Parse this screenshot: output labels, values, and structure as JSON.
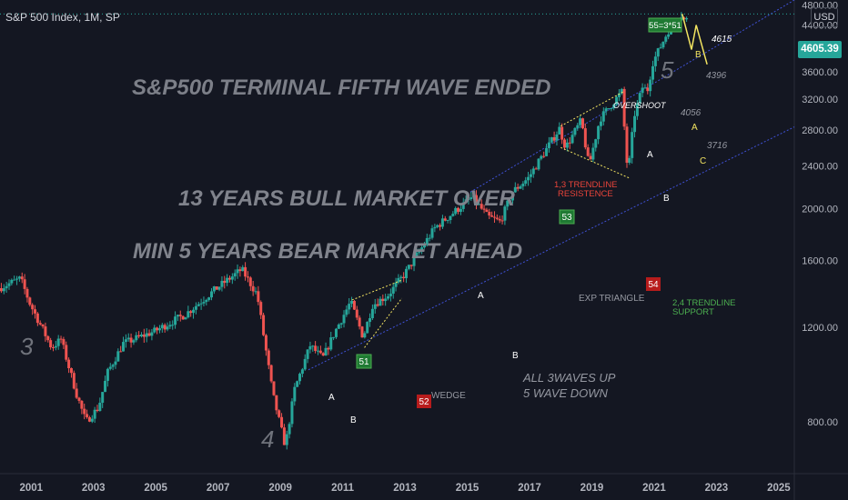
{
  "header": {
    "title": "S&P 500 Index, 1M, SP"
  },
  "currency_button": "USD",
  "last_price_label": "4605.39",
  "colors": {
    "background": "#141722",
    "up_candle": "#26a69a",
    "down_candle": "#ef5350",
    "trendline": "#3f51d6",
    "wave_label": "#70737c",
    "headline": "#7c7f88",
    "note_gray": "#9598a1",
    "red_note": "#e9443a",
    "green_note": "#4caf50",
    "yellow": "#f3e461",
    "green_box": "#1f7a33",
    "red_box": "#b71c1c",
    "axis_text": "#b2b5be"
  },
  "annotations": {
    "headline": "S&P500 TERMINAL FIFTH WAVE ENDED",
    "bull_text": "13 YEARS BULL MARKET OVER",
    "bear_text": "MIN 5 YEARS BEAR MARKET AHEAD",
    "all_waves_line1": "ALL 3WAVES UP",
    "all_waves_line2": "5 WAVE DOWN",
    "wedge": "WEDGE",
    "exp_triangle": "EXP TRIANGLE",
    "overshoot": "OVERSHOOT",
    "trend13_line1": "1,3 TRENDLINE",
    "trend13_line2": "RESISTENCE",
    "trend24_line1": "2,4 TRENDLINE",
    "trend24_line2": "SUPPORT",
    "wave3": "3",
    "wave4": "4",
    "wave5": "5",
    "box_51": "51",
    "box_52": "52",
    "box_53": "53",
    "box_54": "54",
    "box_55": "55=3*51",
    "A_2011": "A",
    "B_2011": "B",
    "A_2015": "A",
    "B_2016": "B",
    "A_2020": "A",
    "B_2020": "B",
    "B_top": "B",
    "A_proj": "A",
    "C_proj": "C",
    "price_4615": "4615",
    "price_4396": "4396",
    "price_4056": "4056",
    "price_3716": "3716"
  },
  "chart_data": {
    "type": "candlestick",
    "title": "S&P 500 Index, 1M, SP",
    "interval": "1M",
    "y_scale": "log",
    "ylim": [
      640,
      4900
    ],
    "xlim": [
      2000.0,
      2025.5
    ],
    "grid": false,
    "x_tick_labels": [
      "2001",
      "2003",
      "2005",
      "2007",
      "2009",
      "2011",
      "2013",
      "2015",
      "2017",
      "2019",
      "2021",
      "2023",
      "2025"
    ],
    "y_tick_labels": [
      "800.00",
      "1200.00",
      "1600.00",
      "2000.00",
      "2400.00",
      "2800.00",
      "3200.00",
      "3600.00",
      "4000.00",
      "4400.00",
      "4800.00"
    ],
    "last_price": 4605.39,
    "price_path": [
      [
        2000.0,
        1420
      ],
      [
        2000.7,
        1480
      ],
      [
        2001.0,
        1330
      ],
      [
        2001.7,
        1100
      ],
      [
        2002.0,
        1140
      ],
      [
        2002.5,
        900
      ],
      [
        2002.8,
        800
      ],
      [
        2003.2,
        850
      ],
      [
        2003.5,
        990
      ],
      [
        2004.0,
        1120
      ],
      [
        2005.0,
        1180
      ],
      [
        2006.0,
        1270
      ],
      [
        2007.0,
        1420
      ],
      [
        2007.8,
        1540
      ],
      [
        2008.3,
        1380
      ],
      [
        2008.8,
        900
      ],
      [
        2009.2,
        720
      ],
      [
        2009.5,
        920
      ],
      [
        2010.0,
        1110
      ],
      [
        2010.4,
        1050
      ],
      [
        2010.8,
        1180
      ],
      [
        2011.3,
        1340
      ],
      [
        2011.7,
        1150
      ],
      [
        2012.0,
        1320
      ],
      [
        2012.5,
        1380
      ],
      [
        2013.0,
        1500
      ],
      [
        2014.0,
        1840
      ],
      [
        2015.2,
        2100
      ],
      [
        2015.7,
        1930
      ],
      [
        2016.1,
        1890
      ],
      [
        2016.5,
        2150
      ],
      [
        2017.0,
        2280
      ],
      [
        2018.0,
        2820
      ],
      [
        2018.2,
        2600
      ],
      [
        2018.7,
        2920
      ],
      [
        2018.95,
        2400
      ],
      [
        2019.3,
        2940
      ],
      [
        2020.0,
        3300
      ],
      [
        2020.2,
        2300
      ],
      [
        2020.4,
        2980
      ],
      [
        2020.7,
        3420
      ],
      [
        2020.8,
        3260
      ],
      [
        2021.0,
        3750
      ],
      [
        2021.5,
        4300
      ],
      [
        2021.9,
        4615
      ],
      [
        2022.0,
        4500
      ]
    ],
    "trendlines": [
      {
        "name": "1,3 TRENDLINE RESISTENCE",
        "points": [
          [
            2015.0,
            2130
          ],
          [
            2025.5,
            4900
          ]
        ]
      },
      {
        "name": "2,4 TRENDLINE SUPPORT",
        "points": [
          [
            2009.9,
            1000
          ],
          [
            2025.5,
            2840
          ]
        ]
      }
    ],
    "horizontal_levels": [
      4615
    ],
    "projection_abc": [
      [
        2021.9,
        4615
      ],
      [
        2022.2,
        3960
      ],
      [
        2022.35,
        4400
      ],
      [
        2022.7,
        3716
      ]
    ],
    "wedge": {
      "upper": [
        [
          2011.3,
          1350
        ],
        [
          2012.9,
          1470
        ]
      ],
      "lower": [
        [
          2011.7,
          1100
        ],
        [
          2012.9,
          1360
        ]
      ]
    },
    "expanding_triangle": {
      "upper": [
        [
          2018.0,
          2850
        ],
        [
          2020.0,
          3300
        ]
      ],
      "lower": [
        [
          2018.0,
          2600
        ],
        [
          2020.2,
          2280
        ]
      ]
    }
  }
}
